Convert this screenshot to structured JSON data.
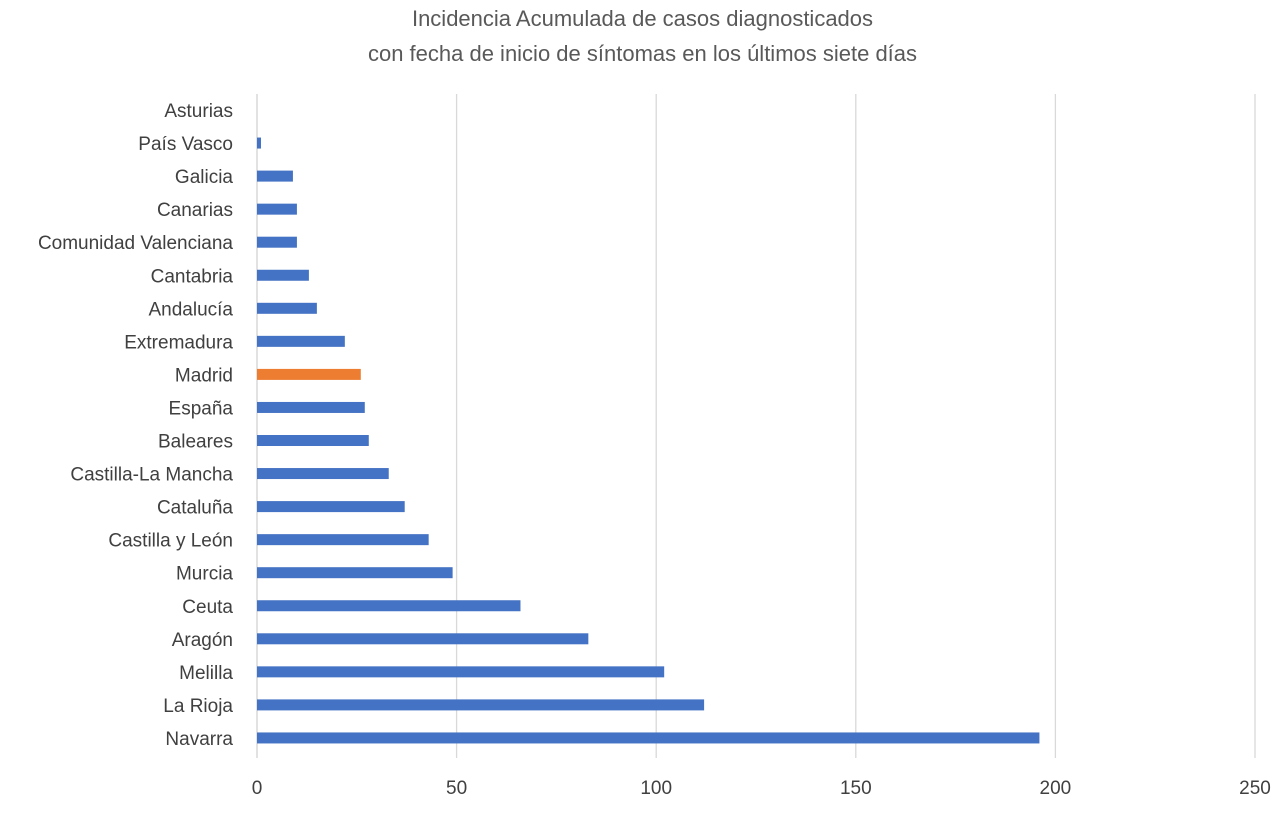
{
  "chart_data": {
    "type": "bar",
    "orientation": "horizontal",
    "title": [
      "Incidencia Acumulada de casos diagnosticados",
      "con fecha de inicio de síntomas en los últimos siete días"
    ],
    "xlabel": "",
    "ylabel": "",
    "xlim": [
      0,
      250
    ],
    "xticks": [
      "0",
      "50",
      "100",
      "150",
      "200",
      "250"
    ],
    "grid": "vertical",
    "legend": "none",
    "categories": [
      "Asturias",
      "País Vasco",
      "Galicia",
      "Canarias",
      "Comunidad Valenciana",
      "Cantabria",
      "Andalucía",
      "Extremadura",
      "Madrid",
      "España",
      "Baleares",
      "Castilla-La Mancha",
      "Cataluña",
      "Castilla y León",
      "Murcia",
      "Ceuta",
      "Aragón",
      "Melilla",
      "La Rioja",
      "Navarra"
    ],
    "values": [
      0,
      1,
      9,
      10,
      10,
      13,
      15,
      22,
      26,
      27,
      28,
      33,
      37,
      43,
      49,
      66,
      83,
      102,
      112,
      196
    ],
    "colors": {
      "default": "#4472C4",
      "Madrid": "#ED7D31",
      "grid": "#D9D9D9"
    }
  }
}
